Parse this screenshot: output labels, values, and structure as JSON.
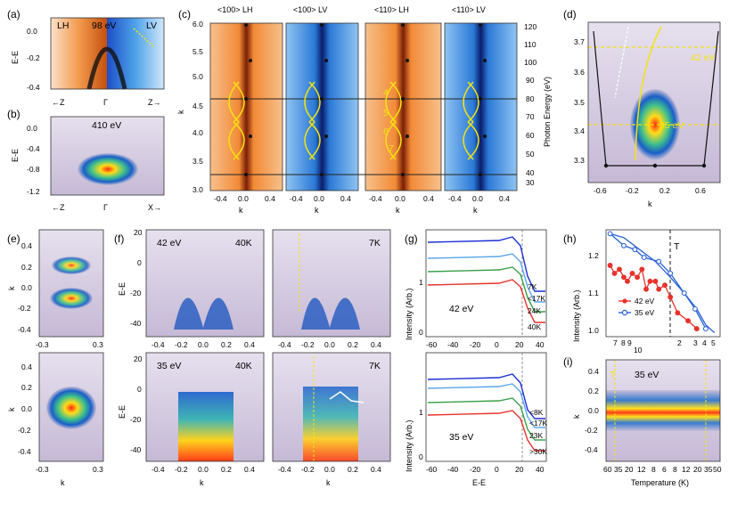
{
  "panels": {
    "a": {
      "label": "(a)",
      "title": "98 eV",
      "left_tag": "LH",
      "right_tag": "LV",
      "ylabel": "E-E",
      "yticks": [
        "0.0",
        "-0.2",
        "-0.4"
      ],
      "xlabels": [
        "←Z",
        "Γ",
        "Z→"
      ]
    },
    "b": {
      "label": "(b)",
      "title": "410 eV",
      "ylabel": "E-E",
      "yticks": [
        "0.0",
        "-0.4",
        "-0.8",
        "-1.2"
      ],
      "xlabels": [
        "←Z",
        "Γ",
        "X→"
      ]
    },
    "c": {
      "label": "(c)",
      "titles": [
        "<100> LH",
        "<100> LV",
        "<110> LH",
        "<110> LV"
      ],
      "ylabel": "k",
      "yticks": [
        "6.0",
        "5.5",
        "5.0",
        "4.5",
        "4.0",
        "3.5",
        "3.0"
      ],
      "y2label": "Photon Energy (eV)",
      "y2ticks": [
        "120",
        "110",
        "100",
        "90",
        "80",
        "70",
        "60",
        "50",
        "40",
        "30"
      ],
      "xticks": [
        "-0.4",
        "0.0",
        "0.4"
      ],
      "xlabel": "k",
      "numbers": [
        "4",
        "5",
        "6",
        "7"
      ]
    },
    "d": {
      "label": "(d)",
      "yticks": [
        "3.7",
        "3.6",
        "3.5",
        "3.4",
        "3.3"
      ],
      "xticks": [
        "-0.6",
        "-0.2",
        "0.2",
        "0.6"
      ],
      "xlabel": "k",
      "line1": "42 eV",
      "line2": "35 eV"
    },
    "e": {
      "label": "(e)",
      "ylabel": "k",
      "yticks_top": [
        "0.4",
        "0.2",
        "0.0",
        "-0.2",
        "-0.4"
      ],
      "yticks_bot": [
        "0.4",
        "0.2",
        "0.0",
        "-0.2",
        "-0.4"
      ],
      "xticks": [
        "-0.3",
        "0.3"
      ],
      "xlabel": "k"
    },
    "f": {
      "label": "(f)",
      "top_left_energy": "42 eV",
      "top_left_temp": "40K",
      "top_right_temp": "7K",
      "bot_left_energy": "35 eV",
      "bot_left_temp": "40K",
      "bot_right_temp": "7K",
      "yticks_top": [
        "20",
        "0",
        "-20",
        "-40"
      ],
      "yticks_bot": [
        "20",
        "0",
        "-20",
        "-40"
      ],
      "xticks": [
        "-0.4",
        "-0.2",
        "0.0",
        "0.2",
        "0.4"
      ],
      "xlabel": "k",
      "ylabel": "E-E"
    },
    "g": {
      "label": "(g)",
      "ylabel": "Intensity (Arb.)",
      "xlabel": "E-E",
      "xticks": [
        "-60",
        "-40",
        "-20",
        "0",
        "20",
        "40"
      ],
      "top_energy": "42 eV",
      "bot_energy": "35 eV",
      "yticks_top": [
        "1",
        "0"
      ],
      "yticks_bot": [
        "1",
        "0"
      ],
      "top_legend": [
        "7K",
        "<17K",
        "24K",
        "40K"
      ],
      "bot_legend": [
        "<8K",
        "<17K",
        "23K",
        ">30K"
      ]
    },
    "h": {
      "label": "(h)",
      "ylabel": "Intensity (Arb.)",
      "yticks": [
        "1.2",
        "1.1",
        "1.0"
      ],
      "xticks": [
        "7",
        "8",
        "9",
        "10",
        "2",
        "3",
        "4",
        "5"
      ],
      "tho": "T",
      "legend": [
        "42 eV",
        "35 eV"
      ]
    },
    "i": {
      "label": "(i)",
      "energy": "35 eV",
      "tho": "T",
      "ylabel": "k",
      "yticks": [
        "0.4",
        "0.2",
        "0.0",
        "-0.2",
        "-0.4"
      ],
      "xticks": [
        "60",
        "35",
        "20",
        "12",
        "8",
        "6",
        "8",
        "12",
        "20",
        "35",
        "50"
      ],
      "xlabel": "Temperature (K)"
    }
  },
  "series": {
    "h_42": [
      [
        7,
        1.17
      ],
      [
        7.6,
        1.15
      ],
      [
        8.3,
        1.16
      ],
      [
        9,
        1.14
      ],
      [
        9.6,
        1.13
      ],
      [
        10.5,
        1.15
      ],
      [
        11.5,
        1.14
      ],
      [
        12.5,
        1.16
      ],
      [
        13.5,
        1.11
      ],
      [
        14.5,
        1.13
      ],
      [
        16,
        1.13
      ],
      [
        17,
        1.11
      ],
      [
        19,
        1.12
      ],
      [
        21,
        1.09
      ],
      [
        24,
        1.05
      ],
      [
        29,
        1.03
      ],
      [
        34,
        1.01
      ]
    ],
    "h_35": [
      [
        7,
        1.25
      ],
      [
        9,
        1.22
      ],
      [
        11,
        1.21
      ],
      [
        13,
        1.19
      ],
      [
        17,
        1.18
      ],
      [
        21,
        1.15
      ],
      [
        27,
        1.1
      ],
      [
        33,
        1.06
      ],
      [
        40,
        1.01
      ]
    ],
    "h_top": [
      [
        7,
        1.25
      ],
      [
        9,
        1.24
      ],
      [
        12,
        1.21
      ],
      [
        16,
        1.18
      ],
      [
        21,
        1.14
      ],
      [
        27,
        1.1
      ],
      [
        34,
        1.06
      ],
      [
        40,
        1.02
      ],
      [
        47,
        1.0
      ]
    ]
  },
  "colors": {
    "lh": "#e2741a",
    "lv": "#2a86d8",
    "yellow": "#f4e30f",
    "red": "#e8322c",
    "blue": "#2a62d8"
  }
}
